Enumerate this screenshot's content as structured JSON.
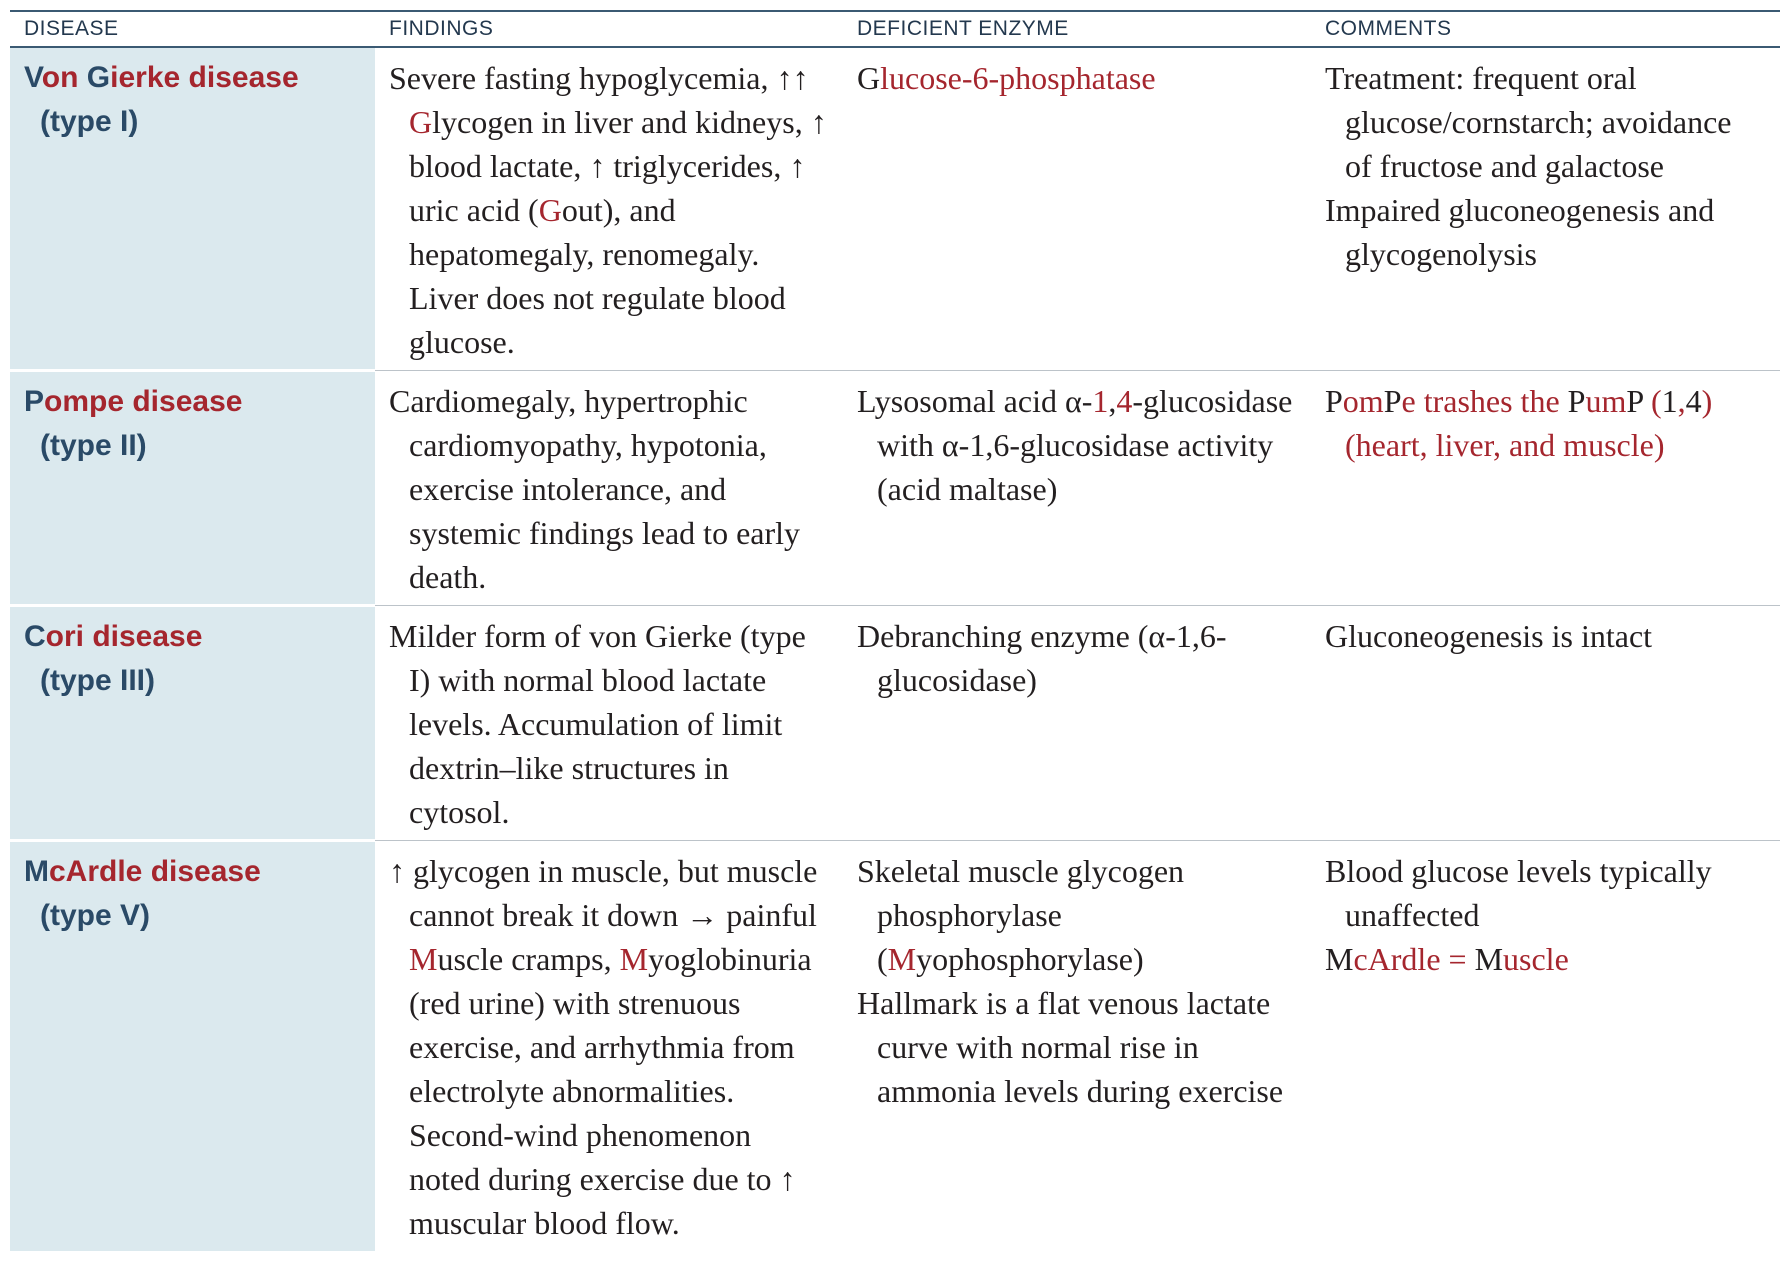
{
  "headers": [
    "DISEASE",
    "FINDINGS",
    "DEFICIENT ENZYME",
    "COMMENTS"
  ],
  "colors": {
    "accent": "#a5262e",
    "header_text": "#23384e",
    "disease_bg": "#dbe9ee",
    "disease_text": "#2a4a67"
  },
  "rows": [
    {
      "disease": [
        "V",
        "on ",
        "G",
        "ierke disease"
      ],
      "type": "(type I)",
      "findings": [
        [
          "Severe fasting hypoglycemia, ↑↑ ",
          "G",
          "lycogen in liver and kidneys, ↑ blood lactate, ↑ triglycerides, ↑ uric acid (",
          "G",
          "out), and hepatomegaly, renomegaly. Liver does not regulate blood glucose."
        ]
      ],
      "enzyme": [
        [
          "G",
          "lucose-6-phosphatase"
        ]
      ],
      "comments": [
        [
          "Treatment: frequent oral glucose/cornstarch; avoidance of fructose and galactose"
        ],
        [
          "Impaired gluconeogenesis and glycogenolysis"
        ]
      ]
    },
    {
      "disease": [
        "P",
        "ompe disease"
      ],
      "type": "(type II)",
      "findings": [
        [
          "Cardiomegaly, hypertrophic cardiomyopathy, hypotonia, exercise intolerance, and systemic findings lead to early death."
        ]
      ],
      "enzyme": [
        [
          "Lysosomal acid α-",
          "1",
          ",",
          "4",
          "-glucosidase with α-1,6-glucosidase activity (acid maltase)"
        ]
      ],
      "comments": [
        [
          "P",
          "om",
          "P",
          "e trashes the ",
          "P",
          "um",
          "P",
          " (",
          "1",
          ",",
          "4",
          ") (heart, liver, and muscle)"
        ]
      ]
    },
    {
      "disease": [
        "C",
        "ori disease"
      ],
      "type": "(type III)",
      "findings": [
        [
          "Milder form of von Gierke (type I) with normal blood lactate levels. Accumulation of limit dextrin–like structures in cytosol."
        ]
      ],
      "enzyme": [
        [
          "Debranching enzyme (α-1,6-glucosidase)"
        ]
      ],
      "comments": [
        [
          "Gluconeogenesis is intact"
        ]
      ]
    },
    {
      "disease": [
        "M",
        "cArdle disease"
      ],
      "type": "(type V)",
      "findings": [
        [
          "↑ glycogen in muscle, but muscle cannot break it down → painful ",
          "M",
          "uscle cramps, ",
          "M",
          "yoglobinuria (red urine) with strenuous exercise, and arrhythmia from electrolyte abnormalities. Second-wind phenomenon noted during exercise due to ↑ muscular blood flow."
        ]
      ],
      "enzyme": [
        [
          "Skeletal muscle glycogen phosphorylase (",
          "M",
          "yophosphorylase)"
        ],
        [
          "Hallmark is a flat venous lactate curve with normal rise in ammonia levels during exercise"
        ]
      ],
      "comments": [
        [
          "Blood glucose levels typically unaffected"
        ],
        [
          "M",
          "cArdle = ",
          "M",
          "uscle"
        ]
      ]
    }
  ]
}
